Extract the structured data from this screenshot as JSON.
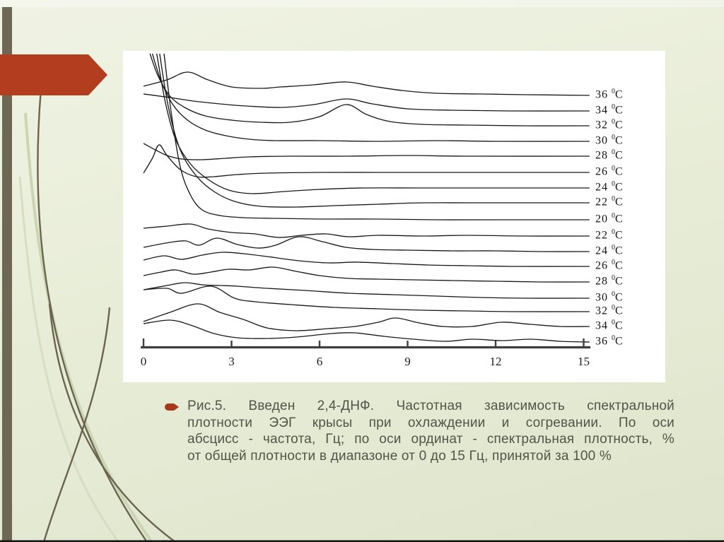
{
  "slide": {
    "left_bar_color": "#6e6754",
    "arrow_color": "#b23d1f",
    "bottom_line_color": "#141414",
    "decor_dark": "#6b644f",
    "decor_light": "#cbd5b2",
    "decor_light2": "#d6dec1"
  },
  "caption": {
    "bullet_color": "#a5391c",
    "color": "#53534a",
    "lines": [
      "Рис.5. Введен 2,4-ДНФ. Частотная зависимость спектральной",
      "плотности ЭЭГ крысы при охлаждении и согревании. По оси",
      "абсцисс - частота, Гц; по оси ординат - спектральная плотность, %",
      "от общей плотности в диапазоне от 0 до 15 Гц, принятой за 100 %"
    ]
  },
  "chart_data": {
    "type": "line",
    "title": "",
    "xlabel": "частота, Гц",
    "ylabel": "спектральная плотность, % от общей плотности (0-15 Гц = 100 %)",
    "x_range": [
      0,
      15
    ],
    "x_ticks": [
      0,
      3,
      6,
      9,
      12,
      15
    ],
    "grid": false,
    "legend_position": "right-per-trace",
    "axis_color": "#3f3f3f",
    "trace_color": "#191919",
    "temperature_unit": "C",
    "degree_symbol": "0",
    "amplitude_units": "px_above_row_baseline",
    "series": [
      {
        "label": "36",
        "baseline": 63,
        "points": [
          [
            0,
            13
          ],
          [
            0.8,
            22
          ],
          [
            1.5,
            33
          ],
          [
            2.2,
            22
          ],
          [
            3,
            12
          ],
          [
            4,
            10
          ],
          [
            4.7,
            12
          ],
          [
            5.8,
            15
          ],
          [
            6.9,
            19
          ],
          [
            7.8,
            13
          ],
          [
            8.8,
            7
          ],
          [
            10,
            3
          ],
          [
            11.5,
            2
          ],
          [
            13,
            1
          ],
          [
            15.2,
            0
          ]
        ]
      },
      {
        "label": "34",
        "baseline": 85,
        "points": [
          [
            0,
            24
          ],
          [
            0.9,
            19
          ],
          [
            1.7,
            14
          ],
          [
            2.6,
            10
          ],
          [
            3.5,
            7
          ],
          [
            4.7,
            5
          ],
          [
            5.8,
            9
          ],
          [
            6.9,
            17
          ],
          [
            7.8,
            10
          ],
          [
            9,
            3
          ],
          [
            10.5,
            1
          ],
          [
            12.5,
            0
          ],
          [
            15.2,
            0
          ]
        ]
      },
      {
        "label": "32",
        "baseline": 106,
        "points": [
          [
            0.22,
            102
          ],
          [
            0.5,
            70
          ],
          [
            0.9,
            42
          ],
          [
            1.4,
            26
          ],
          [
            2.1,
            14
          ],
          [
            3,
            8
          ],
          [
            4,
            5
          ],
          [
            5,
            5
          ],
          [
            6,
            13
          ],
          [
            6.9,
            30
          ],
          [
            7.6,
            16
          ],
          [
            8.4,
            6
          ],
          [
            9.5,
            2
          ],
          [
            11,
            1
          ],
          [
            13,
            0
          ],
          [
            15.2,
            0
          ]
        ]
      },
      {
        "label": "30",
        "baseline": 128,
        "points": [
          [
            0.3,
            124
          ],
          [
            0.6,
            85
          ],
          [
            1,
            52
          ],
          [
            1.5,
            30
          ],
          [
            2.1,
            16
          ],
          [
            2.8,
            8
          ],
          [
            3.6,
            3
          ],
          [
            4.5,
            1
          ],
          [
            6,
            1
          ],
          [
            8,
            0
          ],
          [
            10,
            1
          ],
          [
            12,
            0
          ],
          [
            15.2,
            0
          ]
        ]
      },
      {
        "label": "28",
        "baseline": 149,
        "points": [
          [
            0,
            18
          ],
          [
            0.4,
            9
          ],
          [
            0.8,
            1
          ],
          [
            1.3,
            -4
          ],
          [
            2,
            -5
          ],
          [
            2.8,
            -3
          ],
          [
            3.6,
            -1
          ],
          [
            5,
            0
          ],
          [
            7,
            0
          ],
          [
            9,
            1
          ],
          [
            11,
            0
          ],
          [
            15.2,
            0
          ]
        ]
      },
      {
        "label": "26",
        "baseline": 172,
        "points": [
          [
            0,
            -1
          ],
          [
            0.3,
            20
          ],
          [
            0.53,
            39
          ],
          [
            0.8,
            24
          ],
          [
            1.25,
            4
          ],
          [
            1.8,
            -6
          ],
          [
            2.4,
            -6
          ],
          [
            3.2,
            -3
          ],
          [
            4.2,
            -1
          ],
          [
            6,
            0
          ],
          [
            8,
            0
          ],
          [
            10,
            0
          ],
          [
            15.2,
            0
          ]
        ]
      },
      {
        "label": "24",
        "baseline": 194,
        "points": [
          [
            0.45,
            190
          ],
          [
            0.75,
            120
          ],
          [
            1.1,
            68
          ],
          [
            1.6,
            34
          ],
          [
            2.2,
            12
          ],
          [
            2.9,
            -3
          ],
          [
            3.7,
            -8
          ],
          [
            4.8,
            -5
          ],
          [
            6,
            -2
          ],
          [
            7.5,
            0
          ],
          [
            9.5,
            0
          ],
          [
            12,
            0
          ],
          [
            15.2,
            0
          ]
        ]
      },
      {
        "label": "22",
        "baseline": 215,
        "points": [
          [
            0.55,
            211
          ],
          [
            0.85,
            135
          ],
          [
            1.25,
            75
          ],
          [
            1.8,
            38
          ],
          [
            2.4,
            16
          ],
          [
            3.1,
            2
          ],
          [
            4,
            -5
          ],
          [
            5.2,
            -6
          ],
          [
            6.5,
            -4
          ],
          [
            8,
            -2
          ],
          [
            9.5,
            0
          ],
          [
            11.5,
            0
          ],
          [
            15.2,
            0
          ]
        ]
      },
      {
        "label": "20",
        "baseline": 239,
        "points": [
          [
            0.7,
            235
          ],
          [
            0.95,
            150
          ],
          [
            1.25,
            75
          ],
          [
            1.6,
            35
          ],
          [
            2,
            14
          ],
          [
            2.6,
            6
          ],
          [
            3.4,
            3
          ],
          [
            4.5,
            2
          ],
          [
            6,
            1
          ],
          [
            8,
            1
          ],
          [
            10,
            0
          ],
          [
            12,
            0
          ],
          [
            15.2,
            0
          ]
        ]
      },
      {
        "label": "22",
        "baseline": 262,
        "points": [
          [
            0,
            11
          ],
          [
            0.8,
            14
          ],
          [
            1.6,
            17
          ],
          [
            2.2,
            10
          ],
          [
            3,
            5
          ],
          [
            3.8,
            3
          ],
          [
            4.6,
            -2
          ],
          [
            5.4,
            1
          ],
          [
            6.2,
            3
          ],
          [
            7,
            -1
          ],
          [
            8,
            1
          ],
          [
            9.5,
            0
          ],
          [
            11,
            1
          ],
          [
            13,
            0
          ],
          [
            15.2,
            0
          ]
        ]
      },
      {
        "label": "24",
        "baseline": 284,
        "points": [
          [
            0,
            6
          ],
          [
            0.9,
            13
          ],
          [
            1.45,
            15
          ],
          [
            1.9,
            9
          ],
          [
            2.5,
            19
          ],
          [
            3.2,
            10
          ],
          [
            3.9,
            5
          ],
          [
            4.5,
            9
          ],
          [
            5.3,
            21
          ],
          [
            6.1,
            14
          ],
          [
            6.9,
            6
          ],
          [
            7.8,
            3
          ],
          [
            9,
            2
          ],
          [
            10.5,
            1
          ],
          [
            12,
            1
          ],
          [
            13.5,
            0
          ],
          [
            15.2,
            0
          ]
        ]
      },
      {
        "label": "26",
        "baseline": 305,
        "points": [
          [
            0,
            9
          ],
          [
            0.7,
            15
          ],
          [
            1.3,
            10
          ],
          [
            2,
            16
          ],
          [
            2.7,
            20
          ],
          [
            3.4,
            18
          ],
          [
            4.2,
            14
          ],
          [
            5.3,
            8
          ],
          [
            6.3,
            5
          ],
          [
            7.3,
            6
          ],
          [
            8.5,
            4
          ],
          [
            9.7,
            2
          ],
          [
            11,
            1
          ],
          [
            12.5,
            0
          ],
          [
            15.2,
            0
          ]
        ]
      },
      {
        "label": "28",
        "baseline": 327,
        "points": [
          [
            0,
            9
          ],
          [
            0.6,
            14
          ],
          [
            1.1,
            17
          ],
          [
            1.7,
            11
          ],
          [
            2.3,
            14
          ],
          [
            2.9,
            18
          ],
          [
            3.6,
            17
          ],
          [
            4.4,
            21
          ],
          [
            5.2,
            15
          ],
          [
            6,
            9
          ],
          [
            7,
            5
          ],
          [
            8,
            4
          ],
          [
            9.2,
            3
          ],
          [
            10.5,
            2
          ],
          [
            12,
            1
          ],
          [
            13.5,
            0
          ],
          [
            15.2,
            0
          ]
        ]
      },
      {
        "label": "30",
        "baseline": 350,
        "points": [
          [
            0,
            12
          ],
          [
            0.8,
            18
          ],
          [
            1.4,
            22
          ],
          [
            2,
            19
          ],
          [
            2.6,
            18
          ],
          [
            3.2,
            17
          ],
          [
            4.2,
            14
          ],
          [
            5.5,
            11
          ],
          [
            7,
            7
          ],
          [
            8.5,
            5
          ],
          [
            10,
            3
          ],
          [
            11.5,
            1
          ],
          [
            13,
            0
          ],
          [
            15.2,
            0
          ]
        ]
      },
      {
        "label": "32",
        "baseline": 369,
        "points": [
          [
            0,
            31
          ],
          [
            0.8,
            33
          ],
          [
            1.3,
            26
          ],
          [
            2.3,
            36
          ],
          [
            3.1,
            19
          ],
          [
            3.8,
            14
          ],
          [
            5,
            10
          ],
          [
            6.5,
            6
          ],
          [
            8,
            4
          ],
          [
            9.5,
            2
          ],
          [
            11,
            1
          ],
          [
            12.5,
            0
          ],
          [
            15.2,
            0
          ]
        ]
      },
      {
        "label": "34",
        "baseline": 390,
        "points": [
          [
            0,
            7
          ],
          [
            0.9,
            20
          ],
          [
            1.85,
            32
          ],
          [
            2.6,
            20
          ],
          [
            3.4,
            10
          ],
          [
            4.2,
            -2
          ],
          [
            5.2,
            -6
          ],
          [
            6.3,
            -3
          ],
          [
            7.2,
            0
          ],
          [
            8,
            6
          ],
          [
            8.6,
            12
          ],
          [
            9.4,
            5
          ],
          [
            10.2,
            0
          ],
          [
            11.2,
            0
          ],
          [
            12.2,
            6
          ],
          [
            13.2,
            3
          ],
          [
            14.2,
            0
          ],
          [
            15.2,
            0
          ]
        ]
      },
      {
        "label": "36",
        "baseline": 412,
        "points": [
          [
            0,
            26
          ],
          [
            0.9,
            31
          ],
          [
            1.6,
            24
          ],
          [
            2.4,
            12
          ],
          [
            3.2,
            6
          ],
          [
            4.2,
            5
          ],
          [
            5.2,
            7
          ],
          [
            6.4,
            12
          ],
          [
            7.2,
            13
          ],
          [
            8.2,
            8
          ],
          [
            9.2,
            4
          ],
          [
            10.3,
            1
          ],
          [
            11.2,
            4
          ],
          [
            12.2,
            2
          ],
          [
            13.2,
            4
          ],
          [
            14.2,
            1
          ],
          [
            15.2,
            0
          ]
        ]
      }
    ]
  }
}
